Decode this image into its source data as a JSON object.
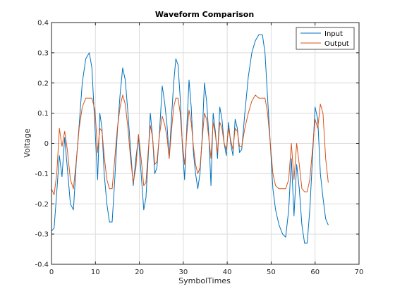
{
  "chart_data": {
    "type": "line",
    "title": "Waveform Comparison",
    "xlabel": "SymbolTimes",
    "ylabel": "Voltage",
    "xlim": [
      0,
      70
    ],
    "ylim": [
      -0.4,
      0.4
    ],
    "xticks": [
      0,
      10,
      20,
      30,
      40,
      50,
      60,
      70
    ],
    "yticks": [
      -0.4,
      -0.3,
      -0.2,
      -0.1,
      0,
      0.1,
      0.2,
      0.3,
      0.4
    ],
    "xtick_labels": [
      "0",
      "10",
      "20",
      "30",
      "40",
      "50",
      "60",
      "70"
    ],
    "ytick_labels": [
      "-0.4",
      "-0.3",
      "-0.2",
      "-0.1",
      "0",
      "0.1",
      "0.2",
      "0.3",
      "0.4"
    ],
    "grid": true,
    "legend_location": "top-right",
    "series": [
      {
        "name": "Input",
        "color": "#0072BD",
        "x": [
          0,
          0.6,
          1.2,
          1.8,
          2.4,
          3.0,
          3.6,
          4.3,
          5.0,
          5.7,
          6.3,
          7.0,
          7.8,
          8.6,
          9.2,
          9.9,
          10.5,
          11.0,
          11.5,
          12.0,
          12.6,
          13.2,
          13.8,
          14.4,
          15.0,
          15.6,
          16.2,
          16.8,
          17.4,
          18.0,
          18.6,
          19.2,
          19.8,
          20.4,
          21.0,
          21.5,
          22.0,
          22.5,
          23.0,
          23.5,
          24.0,
          24.6,
          25.2,
          25.8,
          26.3,
          26.8,
          27.3,
          27.8,
          28.3,
          28.8,
          29.3,
          29.8,
          30.3,
          30.8,
          31.3,
          31.8,
          32.3,
          32.8,
          33.3,
          33.8,
          34.3,
          34.8,
          35.3,
          35.8,
          36.3,
          36.8,
          37.3,
          37.8,
          38.3,
          38.8,
          39.3,
          39.8,
          40.3,
          40.8,
          41.3,
          41.8,
          42.3,
          42.8,
          43.3,
          44.0,
          44.8,
          45.6,
          46.4,
          47.2,
          48.0,
          48.6,
          49.2,
          49.8,
          50.4,
          51.0,
          51.8,
          52.6,
          53.3,
          54.0,
          54.6,
          55.2,
          55.8,
          56.4,
          57.0,
          57.6,
          58.2,
          58.8,
          59.4,
          60.0,
          60.6,
          61.2,
          61.8,
          62.4,
          63.0
        ],
        "y": [
          -0.29,
          -0.28,
          -0.16,
          -0.04,
          -0.11,
          0.02,
          -0.08,
          -0.2,
          -0.22,
          -0.05,
          0.06,
          0.2,
          0.28,
          0.3,
          0.25,
          0.05,
          -0.12,
          0.1,
          0.05,
          -0.1,
          -0.2,
          -0.26,
          -0.26,
          -0.12,
          0.04,
          0.16,
          0.25,
          0.21,
          0.1,
          -0.02,
          -0.14,
          -0.05,
          0.02,
          -0.1,
          -0.22,
          -0.18,
          -0.05,
          0.1,
          0.02,
          -0.1,
          -0.08,
          0.04,
          0.19,
          0.13,
          0.06,
          -0.05,
          0.08,
          0.2,
          0.28,
          0.26,
          0.15,
          -0.01,
          -0.12,
          0.05,
          0.21,
          0.12,
          -0.03,
          -0.1,
          -0.15,
          -0.1,
          0.02,
          0.2,
          0.14,
          0.03,
          -0.14,
          0.1,
          0.04,
          -0.05,
          0.12,
          0.08,
          0.0,
          -0.04,
          0.07,
          0.0,
          -0.04,
          0.08,
          0.05,
          -0.03,
          -0.02,
          0.1,
          0.22,
          0.3,
          0.34,
          0.36,
          0.36,
          0.3,
          0.15,
          0.0,
          -0.15,
          -0.22,
          -0.27,
          -0.3,
          -0.31,
          -0.22,
          -0.05,
          -0.24,
          -0.07,
          -0.15,
          -0.27,
          -0.33,
          -0.33,
          -0.22,
          -0.05,
          0.12,
          0.08,
          -0.1,
          -0.18,
          -0.25,
          -0.27
        ]
      },
      {
        "name": "Output",
        "color": "#D95319",
        "x": [
          0,
          0.6,
          1.2,
          1.8,
          2.4,
          3.0,
          3.6,
          4.3,
          5.0,
          5.7,
          6.3,
          7.0,
          7.8,
          8.6,
          9.2,
          9.9,
          10.5,
          11.0,
          11.5,
          12.0,
          12.6,
          13.2,
          13.8,
          14.4,
          15.0,
          15.6,
          16.2,
          16.8,
          17.4,
          18.0,
          18.6,
          19.2,
          19.8,
          20.4,
          21.0,
          21.5,
          22.0,
          22.5,
          23.0,
          23.5,
          24.0,
          24.6,
          25.2,
          25.8,
          26.3,
          26.8,
          27.3,
          27.8,
          28.3,
          28.8,
          29.3,
          29.8,
          30.3,
          30.8,
          31.3,
          31.8,
          32.3,
          32.8,
          33.3,
          33.8,
          34.3,
          34.8,
          35.3,
          35.8,
          36.3,
          36.8,
          37.3,
          37.8,
          38.3,
          38.8,
          39.3,
          39.8,
          40.3,
          40.8,
          41.3,
          41.8,
          42.3,
          42.8,
          43.3,
          44.0,
          44.8,
          45.6,
          46.4,
          47.2,
          48.0,
          48.6,
          49.2,
          49.8,
          50.4,
          51.0,
          51.8,
          52.6,
          53.3,
          54.0,
          54.6,
          55.2,
          55.8,
          56.4,
          57.0,
          57.6,
          58.2,
          58.8,
          59.4,
          60.0,
          60.6,
          61.2,
          61.8,
          62.4,
          63.0
        ],
        "y": [
          -0.15,
          -0.17,
          -0.1,
          0.05,
          -0.01,
          0.04,
          -0.02,
          -0.12,
          -0.15,
          -0.05,
          0.05,
          0.12,
          0.15,
          0.15,
          0.15,
          0.11,
          -0.03,
          0.05,
          0.04,
          -0.04,
          -0.12,
          -0.15,
          -0.15,
          -0.05,
          0.05,
          0.12,
          0.16,
          0.13,
          0.05,
          -0.05,
          -0.13,
          -0.08,
          0.03,
          -0.05,
          -0.14,
          -0.13,
          -0.03,
          0.06,
          0.02,
          -0.07,
          -0.06,
          0.03,
          0.09,
          0.06,
          0.02,
          -0.05,
          0.04,
          0.12,
          0.15,
          0.15,
          0.1,
          0.0,
          -0.07,
          0.03,
          0.11,
          0.07,
          -0.01,
          -0.07,
          -0.1,
          -0.08,
          0.01,
          0.1,
          0.08,
          0.02,
          -0.05,
          0.07,
          0.03,
          -0.03,
          0.07,
          0.05,
          0.0,
          -0.02,
          0.05,
          0.01,
          -0.02,
          0.05,
          0.04,
          -0.01,
          -0.01,
          0.05,
          0.1,
          0.14,
          0.16,
          0.15,
          0.15,
          0.15,
          0.1,
          0.0,
          -0.1,
          -0.14,
          -0.15,
          -0.15,
          -0.15,
          -0.12,
          0.0,
          -0.12,
          0.0,
          -0.07,
          -0.15,
          -0.16,
          -0.16,
          -0.12,
          -0.02,
          0.08,
          0.05,
          0.13,
          0.1,
          -0.05,
          -0.13
        ]
      }
    ]
  }
}
